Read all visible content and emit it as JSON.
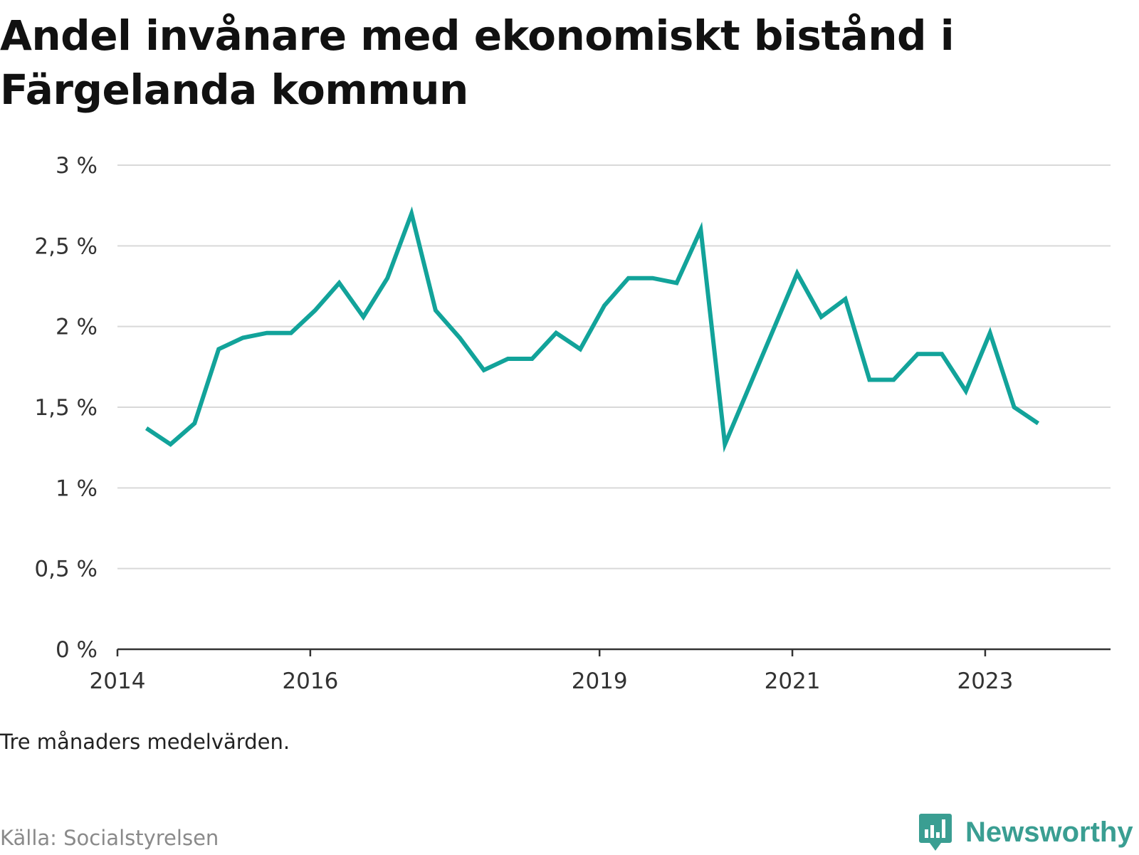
{
  "title": "Andel invånare med ekonomiskt bistånd i Färgelanda kommun",
  "note": "Tre månaders medelvärden.",
  "source": "Källa: Socialstyrelsen",
  "brand": {
    "name": "Newsworthy",
    "icon": "bar-chart-speech-bubble-icon",
    "color": "#3a9e92"
  },
  "chart_data": {
    "type": "line",
    "color": "#12a39a",
    "ylim": [
      0,
      3
    ],
    "yticks": [
      0,
      0.5,
      1,
      1.5,
      2,
      2.5,
      3
    ],
    "ytick_labels": [
      "0 %",
      "0,5 %",
      "1 %",
      "1,5 %",
      "2 %",
      "2,5 %",
      "3 %"
    ],
    "xlim": [
      2014,
      2024.3
    ],
    "xticks": [
      2014,
      2016,
      2019,
      2021,
      2023
    ],
    "xtick_labels": [
      "2014",
      "2016",
      "2019",
      "2021",
      "2023"
    ],
    "grid": true,
    "series": [
      {
        "x": [
          2014.3,
          2014.55,
          2014.8,
          2015.05,
          2015.3,
          2015.55,
          2015.8,
          2016.05,
          2016.3,
          2016.55,
          2016.8,
          2017.05,
          2017.3,
          2017.55,
          2017.8,
          2018.05,
          2018.3,
          2018.55,
          2018.8,
          2019.05,
          2019.3,
          2019.55,
          2019.8,
          2020.05,
          2020.3,
          2021.05,
          2021.3,
          2021.55,
          2021.8,
          2022.05,
          2022.3,
          2022.55,
          2022.8,
          2023.05,
          2023.3,
          2023.55
        ],
        "y": [
          1.37,
          1.27,
          1.4,
          1.86,
          1.93,
          1.96,
          1.96,
          2.1,
          2.27,
          2.06,
          2.3,
          2.7,
          2.1,
          1.93,
          1.73,
          1.8,
          1.8,
          1.96,
          1.86,
          2.13,
          2.3,
          2.3,
          2.27,
          2.6,
          1.27,
          2.33,
          2.06,
          2.17,
          1.67,
          1.67,
          1.83,
          1.83,
          1.6,
          1.96,
          1.5,
          1.4
        ]
      }
    ]
  }
}
